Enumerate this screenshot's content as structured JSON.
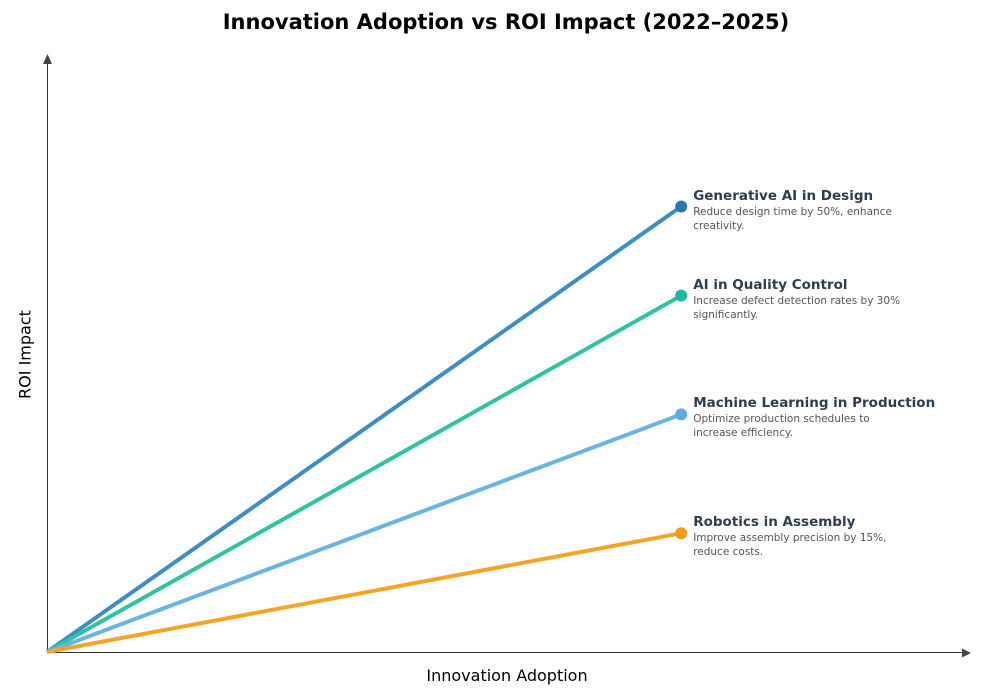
{
  "chart_data": {
    "type": "line",
    "title": "Innovation Adoption vs ROI Impact (2022–2025)",
    "xlabel": "Innovation Adoption",
    "ylabel": "ROI Impact",
    "xlim": [
      0,
      1
    ],
    "ylim": [
      0,
      1
    ],
    "grid": false,
    "axis_ticks": false,
    "series": [
      {
        "name": "Generative AI in Design",
        "description": "Reduce design time by 50%, enhance creativity.",
        "x": [
          0,
          0.7
        ],
        "y": [
          0,
          0.75
        ],
        "line_color": "#3d8ec4",
        "marker_color": "#2878b5"
      },
      {
        "name": "AI in Quality Control",
        "description": "Increase defect detection rates by 30% significantly.",
        "x": [
          0,
          0.7
        ],
        "y": [
          0,
          0.6
        ],
        "line_color": "#2ec4a0",
        "marker_color": "#1abc9c"
      },
      {
        "name": "Machine Learning in Production",
        "description": "Optimize production schedules to increase efficiency.",
        "x": [
          0,
          0.7
        ],
        "y": [
          0,
          0.4
        ],
        "line_color": "#6ab4e4",
        "marker_color": "#5dade2"
      },
      {
        "name": "Robotics in Assembly",
        "description": "Improve assembly precision by 15%, reduce costs.",
        "x": [
          0,
          0.7
        ],
        "y": [
          0,
          0.2
        ],
        "line_color": "#f5a42a",
        "marker_color": "#f39c12"
      }
    ]
  }
}
